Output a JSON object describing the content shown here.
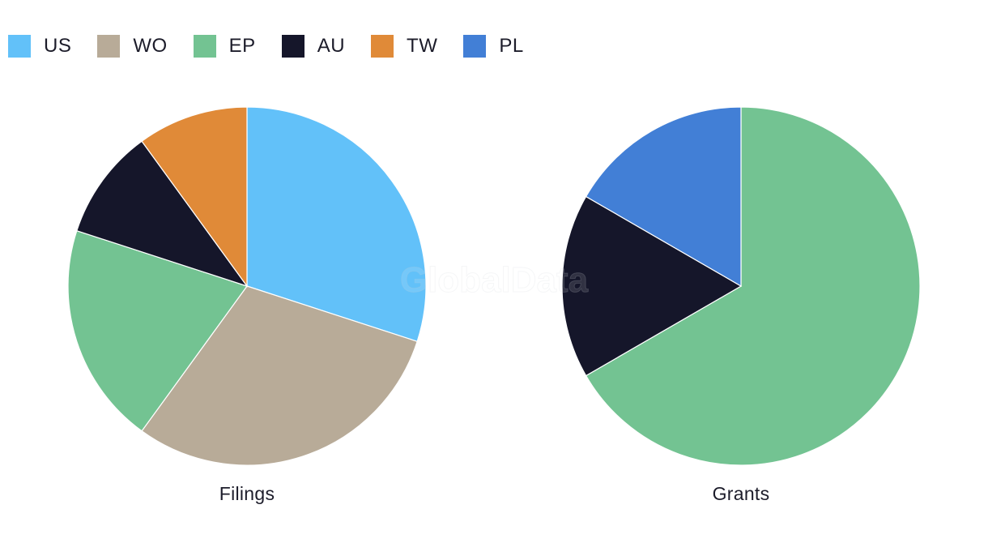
{
  "watermark": "GlobalData",
  "legend": [
    {
      "name": "US",
      "color": "#62c1f9"
    },
    {
      "name": "WO",
      "color": "#b8ab98"
    },
    {
      "name": "EP",
      "color": "#73c392"
    },
    {
      "name": "AU",
      "color": "#15162a"
    },
    {
      "name": "TW",
      "color": "#e08a38"
    },
    {
      "name": "PL",
      "color": "#427fd6"
    }
  ],
  "chart_data": [
    {
      "type": "pie",
      "title": "Filings",
      "start_angle_deg": 0,
      "direction": "clockwise",
      "slices": [
        {
          "name": "US",
          "value": 3
        },
        {
          "name": "WO",
          "value": 3
        },
        {
          "name": "EP",
          "value": 2
        },
        {
          "name": "AU",
          "value": 1
        },
        {
          "name": "TW",
          "value": 1
        }
      ]
    },
    {
      "type": "pie",
      "title": "Grants",
      "start_angle_deg": 0,
      "direction": "clockwise",
      "slices": [
        {
          "name": "EP",
          "value": 4
        },
        {
          "name": "AU",
          "value": 1
        },
        {
          "name": "PL",
          "value": 1
        }
      ]
    }
  ]
}
